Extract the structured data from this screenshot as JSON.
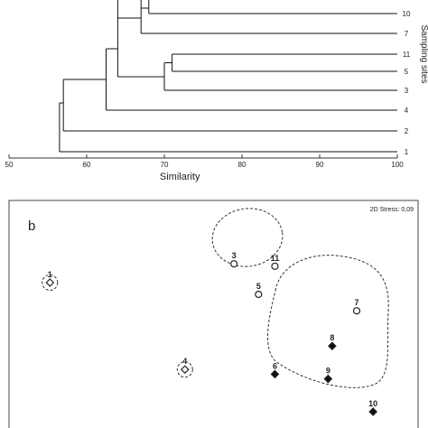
{
  "chart_data": [
    {
      "type": "dendrogram",
      "xlabel": "Similarity",
      "ylabel": "Sampling sites",
      "xlim": [
        50,
        100
      ],
      "x_ticks": [
        "50",
        "60",
        "70",
        "80",
        "90",
        "100"
      ],
      "leaves": [
        "10",
        "7",
        "11",
        "5",
        "3",
        "4",
        "2",
        "1"
      ],
      "merges": [
        {
          "left": "11",
          "right": "5",
          "similarity": 71
        },
        {
          "left": "11,5",
          "right": "3",
          "similarity": 70
        },
        {
          "left": "10",
          "right": "above",
          "similarity": 68
        },
        {
          "left": "7",
          "right": "10,above",
          "similarity": 67
        },
        {
          "left": "7,10",
          "right": "11,5,3",
          "similarity": 64
        },
        {
          "left": "7,10,11,5,3",
          "right": "4",
          "similarity": 62.5
        },
        {
          "left": "…",
          "right": "2",
          "similarity": 57
        },
        {
          "left": "…",
          "right": "1",
          "similarity": 56.5
        }
      ]
    },
    {
      "type": "scatter",
      "panel_label": "b",
      "stress_label": "2D Stress: 0,09",
      "points": [
        {
          "label": "1",
          "x": 0.1,
          "y": 0.65,
          "marker": "open-diamond"
        },
        {
          "label": "3",
          "x": 0.55,
          "y": 0.73,
          "marker": "open-circle"
        },
        {
          "label": "11",
          "x": 0.65,
          "y": 0.72,
          "marker": "open-circle"
        },
        {
          "label": "5",
          "x": 0.61,
          "y": 0.6,
          "marker": "open-circle"
        },
        {
          "label": "7",
          "x": 0.85,
          "y": 0.53,
          "marker": "open-circle"
        },
        {
          "label": "8",
          "x": 0.79,
          "y": 0.38,
          "marker": "filled-diamond"
        },
        {
          "label": "4",
          "x": 0.43,
          "y": 0.28,
          "marker": "open-diamond"
        },
        {
          "label": "6",
          "x": 0.65,
          "y": 0.26,
          "marker": "filled-diamond"
        },
        {
          "label": "9",
          "x": 0.78,
          "y": 0.24,
          "marker": "filled-diamond"
        },
        {
          "label": "10",
          "x": 0.89,
          "y": 0.1,
          "marker": "filled-diamond"
        }
      ],
      "groups": [
        [
          "1"
        ],
        [
          "3",
          "11",
          "5"
        ],
        [
          "7",
          "8",
          "6",
          "9",
          "10"
        ],
        [
          "4"
        ]
      ]
    }
  ]
}
